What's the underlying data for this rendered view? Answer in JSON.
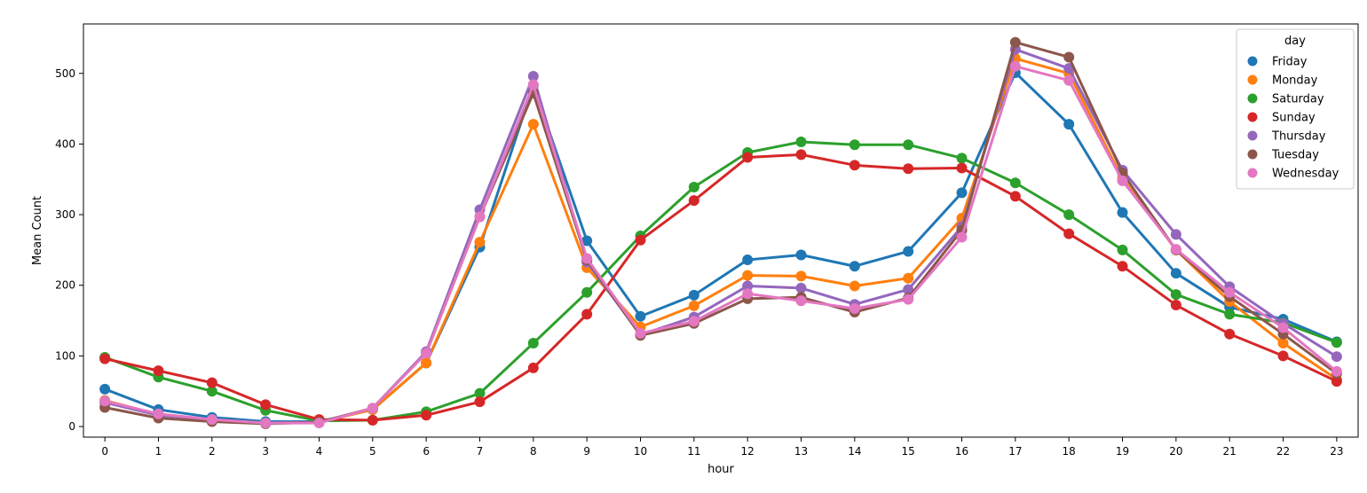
{
  "chart_data": {
    "type": "line",
    "title": "",
    "xlabel": "hour",
    "ylabel": "Mean Count",
    "x": [
      0,
      1,
      2,
      3,
      4,
      5,
      6,
      7,
      8,
      9,
      10,
      11,
      12,
      13,
      14,
      15,
      16,
      17,
      18,
      19,
      20,
      21,
      22,
      23
    ],
    "xlim": [
      -0.4,
      23.4
    ],
    "ylim": [
      -15,
      570
    ],
    "yticks": [
      0,
      100,
      200,
      300,
      400,
      500
    ],
    "grid": false,
    "legend": {
      "title": "day",
      "placement": "top-right"
    },
    "series": [
      {
        "name": "Friday",
        "color": "#1f77b4",
        "values": [
          53,
          24,
          13,
          7,
          7,
          24,
          90,
          254,
          483,
          263,
          156,
          186,
          236,
          243,
          227,
          248,
          331,
          501,
          428,
          303,
          217,
          169,
          152,
          120
        ]
      },
      {
        "name": "Monday",
        "color": "#ff7f0e",
        "values": [
          37,
          17,
          9,
          5,
          6,
          24,
          90,
          261,
          428,
          225,
          141,
          171,
          214,
          213,
          199,
          210,
          295,
          521,
          500,
          351,
          250,
          177,
          118,
          67
        ]
      },
      {
        "name": "Saturday",
        "color": "#2ca02c",
        "values": [
          98,
          70,
          50,
          23,
          8,
          9,
          21,
          47,
          118,
          190,
          270,
          339,
          388,
          403,
          399,
          399,
          380,
          345,
          300,
          250,
          187,
          159,
          147,
          119
        ]
      },
      {
        "name": "Sunday",
        "color": "#d62728",
        "values": [
          96,
          79,
          62,
          31,
          10,
          9,
          16,
          35,
          83,
          159,
          264,
          320,
          381,
          385,
          370,
          365,
          366,
          326,
          273,
          227,
          172,
          131,
          100,
          64
        ]
      },
      {
        "name": "Thursday",
        "color": "#9467bd",
        "values": [
          34,
          16,
          10,
          5,
          6,
          26,
          106,
          307,
          496,
          233,
          130,
          155,
          199,
          196,
          173,
          194,
          283,
          534,
          507,
          363,
          272,
          198,
          146,
          99
        ]
      },
      {
        "name": "Tuesday",
        "color": "#8c564b",
        "values": [
          27,
          12,
          7,
          4,
          6,
          26,
          104,
          297,
          472,
          236,
          129,
          146,
          181,
          183,
          162,
          182,
          278,
          544,
          523,
          359,
          250,
          184,
          131,
          75
        ]
      },
      {
        "name": "Wednesday",
        "color": "#e377c2",
        "values": [
          36,
          18,
          10,
          5,
          5,
          26,
          104,
          297,
          484,
          238,
          132,
          149,
          188,
          178,
          167,
          180,
          268,
          510,
          490,
          348,
          251,
          190,
          140,
          78
        ]
      }
    ]
  }
}
